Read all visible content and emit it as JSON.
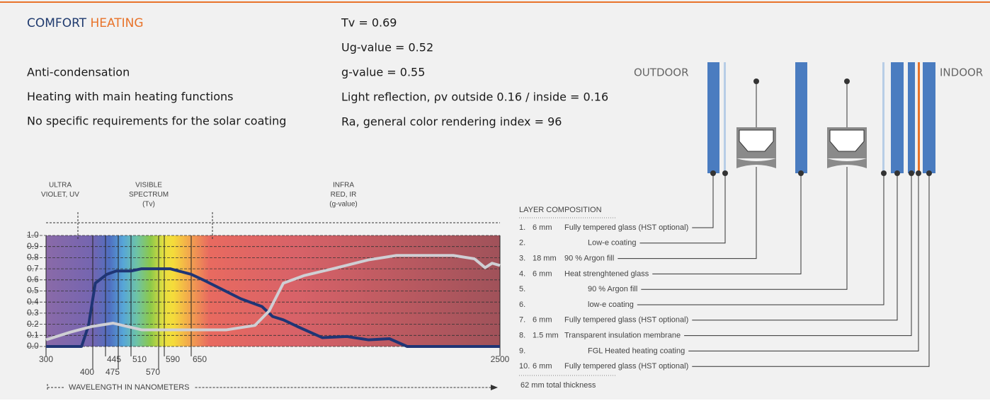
{
  "title": {
    "part1": "COMFORT",
    "part2": "HEATING"
  },
  "features": [
    "Anti-condensation",
    "Heating with main heating functions",
    "No specific requirements for the solar coating"
  ],
  "properties": [
    "Tv = 0.69",
    "Ug-value = 0.52",
    "g-value = 0.55",
    "Light reflection, ρv outside 0.16 / inside = 0.16",
    "Ra, general color rendering index = 96"
  ],
  "diagram": {
    "outdoor": "OUTDOOR",
    "indoor": "INDOOR"
  },
  "layers": {
    "heading": "LAYER COMPOSITION",
    "items": [
      {
        "num": "1.",
        "thickness": "6 mm",
        "name": "Fully tempered glass (HST optional)"
      },
      {
        "num": "2.",
        "name": "Low-e coating"
      },
      {
        "num": "3.",
        "thickness": "18 mm",
        "name": "90 % Argon fill"
      },
      {
        "num": "4.",
        "thickness": "6 mm",
        "name": "Heat strenghtened glass"
      },
      {
        "num": "5.",
        "name": "90 % Argon fill"
      },
      {
        "num": "6.",
        "name": "low-e coating"
      },
      {
        "num": "7.",
        "thickness": "6 mm",
        "name": "Fully tempered glass (HST optional)"
      },
      {
        "num": "8.",
        "thickness": "1.5 mm",
        "name": "Transparent insulation membrane"
      },
      {
        "num": "9.",
        "name": "FGL Heated heating coating"
      },
      {
        "num": "10.",
        "thickness": "6 mm",
        "name": "Fully tempered glass (HST optional)"
      }
    ],
    "total": "62 mm total thickness"
  },
  "chart_data": {
    "type": "line",
    "regions": [
      [
        "ULTRA",
        "VIOLET, UV"
      ],
      [
        "VISIBLE",
        "SPECTRUM",
        "(Tv)"
      ],
      [
        "INFRA",
        "RED, IR",
        "(g-value)"
      ]
    ],
    "x_label": "WAVELENGTH IN NANOMETERS",
    "xlim": [
      300,
      2500
    ],
    "xticks": [
      300,
      400,
      445,
      475,
      510,
      570,
      590,
      650,
      2500
    ],
    "ylim": [
      0,
      1
    ],
    "yticks": [
      {
        "value": 0,
        "label": "0.0"
      },
      0.1,
      0.2,
      0.3,
      0.4,
      0.5,
      0.6,
      0.7,
      0.8,
      0.9,
      {
        "value": 1,
        "label": "1.0"
      }
    ],
    "grid": true,
    "series": [
      {
        "color": "#1f3575",
        "x": [
          300,
          376,
          391,
          409,
          448,
          470,
          510,
          533,
          603,
          650,
          735,
          841,
          947,
          1074,
          1138,
          1202,
          1286,
          1435,
          1583,
          1711,
          1838,
          1944,
          2500
        ],
        "values": [
          0,
          0,
          0.19,
          0.57,
          0.65,
          0.68,
          0.68,
          0.7,
          0.7,
          0.65,
          0.59,
          0.51,
          0.43,
          0.36,
          0.27,
          0.24,
          0.18,
          0.08,
          0.09,
          0.06,
          0.07,
          0,
          0
        ]
      },
      {
        "color": "#cfcfd4",
        "x": [
          300,
          353,
          398,
          463,
          533,
          603,
          650,
          862,
          947,
          1032,
          1117,
          1202,
          1329,
          1499,
          1711,
          1880,
          2220,
          2347,
          2411,
          2453,
          2500
        ],
        "values": [
          0.06,
          0.13,
          0.18,
          0.21,
          0.15,
          0.15,
          0.15,
          0.15,
          0.17,
          0.19,
          0.32,
          0.57,
          0.64,
          0.7,
          0.78,
          0.82,
          0.82,
          0.79,
          0.71,
          0.75,
          0.73
        ]
      }
    ]
  }
}
